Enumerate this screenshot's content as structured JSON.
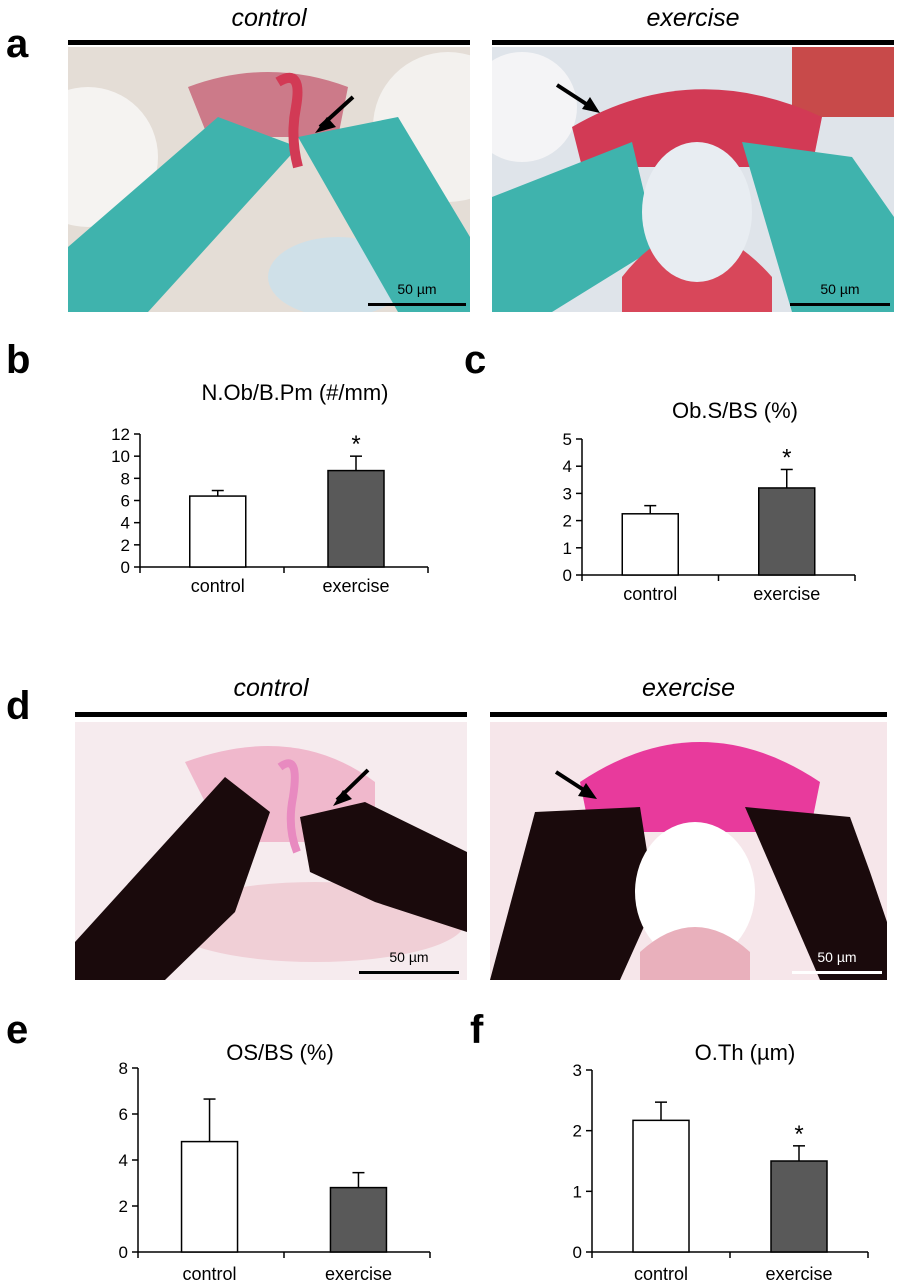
{
  "panel_a": {
    "letter": "a",
    "left": {
      "condition": "control",
      "scale": "50 µm"
    },
    "right": {
      "condition": "exercise",
      "scale": "50 µm"
    }
  },
  "panel_d": {
    "letter": "d",
    "left": {
      "condition": "control",
      "scale": "50 µm"
    },
    "right": {
      "condition": "exercise",
      "scale": "50 µm"
    }
  },
  "colors": {
    "control_bar": "#ffffff",
    "exercise_bar": "#595959",
    "teal_bone": "#3fb3ad",
    "red_osteoid": "#d23a55",
    "black_bone": "#1a0a0c",
    "pink_osteoid": "#e83a9c"
  },
  "chart_data": [
    {
      "id": "b",
      "letter": "b",
      "type": "bar",
      "title": "N.Ob/B.Pm (#/mm)",
      "categories": [
        "control",
        "exercise"
      ],
      "values": [
        6.4,
        8.7
      ],
      "errors": [
        0.5,
        1.3
      ],
      "significance": [
        "",
        "*"
      ],
      "ylim": [
        0,
        12
      ],
      "yticks": [
        0,
        2,
        4,
        6,
        8,
        10,
        12
      ]
    },
    {
      "id": "c",
      "letter": "c",
      "type": "bar",
      "title": "Ob.S/BS (%)",
      "categories": [
        "control",
        "exercise"
      ],
      "values": [
        2.25,
        3.2
      ],
      "errors": [
        0.3,
        0.68
      ],
      "significance": [
        "",
        "*"
      ],
      "ylim": [
        0,
        5
      ],
      "yticks": [
        0,
        1,
        2,
        3,
        4,
        5
      ]
    },
    {
      "id": "e",
      "letter": "e",
      "type": "bar",
      "title": "OS/BS (%)",
      "categories": [
        "control",
        "exercise"
      ],
      "values": [
        4.8,
        2.8
      ],
      "errors": [
        1.85,
        0.65
      ],
      "significance": [
        "",
        ""
      ],
      "ylim": [
        0,
        8
      ],
      "yticks": [
        0,
        2,
        4,
        6,
        8
      ]
    },
    {
      "id": "f",
      "letter": "f",
      "type": "bar",
      "title": "O.Th (µm)",
      "categories": [
        "control",
        "exercise"
      ],
      "values": [
        2.17,
        1.5
      ],
      "errors": [
        0.3,
        0.25
      ],
      "significance": [
        "",
        "*"
      ],
      "ylim": [
        0,
        3
      ],
      "yticks": [
        0,
        1,
        2,
        3
      ]
    }
  ]
}
